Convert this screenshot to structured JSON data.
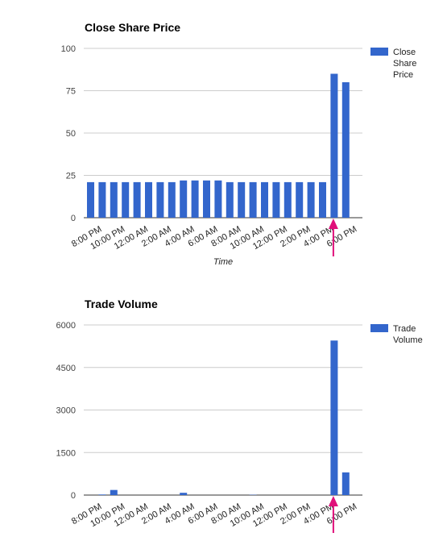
{
  "chart_data": [
    {
      "type": "bar",
      "title": "Close Share Price",
      "xlabel": "Time",
      "ylabel": "",
      "ylim": [
        0,
        100
      ],
      "yticks": [
        0,
        25,
        50,
        75,
        100
      ],
      "x_tick_labels": [
        "8:00 PM",
        "10:00 PM",
        "12:00 AM",
        "2:00 AM",
        "4:00 AM",
        "6:00 AM",
        "8:00 AM",
        "10:00 AM",
        "12:00 PM",
        "2:00 PM",
        "4:00 PM",
        "6:00 PM"
      ],
      "grid": true,
      "legend_position": "right",
      "bar_color": "#3366cc",
      "arrow_color": "#e0107a",
      "series": [
        {
          "name": "Close Share Price",
          "values": [
            21,
            21,
            21,
            21,
            21,
            21,
            21,
            21,
            22,
            22,
            22,
            22,
            21,
            21,
            21,
            21,
            21,
            21,
            21,
            21,
            21,
            85,
            80
          ]
        }
      ]
    },
    {
      "type": "bar",
      "title": "Trade Volume",
      "xlabel": "",
      "ylabel": "",
      "ylim": [
        0,
        6000
      ],
      "yticks": [
        0,
        1500,
        3000,
        4500,
        6000
      ],
      "x_tick_labels": [
        "8:00 PM",
        "10:00 PM",
        "12:00 AM",
        "2:00 AM",
        "4:00 AM",
        "6:00 AM",
        "8:00 AM",
        "10:00 AM",
        "12:00 PM",
        "2:00 PM",
        "4:00 PM",
        "6:00 PM"
      ],
      "grid": true,
      "legend_position": "right",
      "bar_color": "#3366cc",
      "arrow_color": "#e0107a",
      "series": [
        {
          "name": "Trade Volume",
          "values": [
            0,
            20,
            180,
            0,
            0,
            0,
            0,
            0,
            80,
            0,
            0,
            0,
            0,
            0,
            10,
            0,
            0,
            0,
            0,
            0,
            0,
            5450,
            800
          ]
        }
      ]
    }
  ]
}
